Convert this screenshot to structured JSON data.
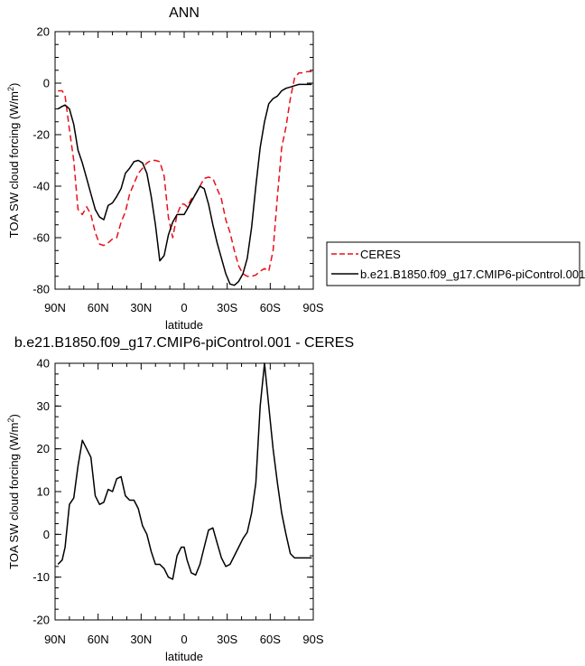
{
  "chart_data": [
    {
      "type": "line",
      "title": "ANN",
      "xlabel": "latitude",
      "ylabel": "TOA SW cloud forcing (W/m",
      "ylabel_sup": "2",
      "ylabel_close": ")",
      "xlim": [
        90,
        -90
      ],
      "ylim": [
        -80,
        20
      ],
      "x_ticks": [
        90,
        60,
        30,
        0,
        -30,
        -60,
        -90
      ],
      "x_tick_labels": [
        "90N",
        "60N",
        "30N",
        "0",
        "30S",
        "60S",
        "90S"
      ],
      "y_ticks": [
        -80,
        -60,
        -40,
        -20,
        0,
        20
      ],
      "y_tick_labels": [
        "-80",
        "-60",
        "-40",
        "-20",
        "0",
        "20"
      ],
      "grid": false,
      "legend_position": "right",
      "series": [
        {
          "name": "CERES",
          "color": "#e8101a",
          "dash": "dashed",
          "x": [
            88,
            85,
            83,
            80,
            77,
            74,
            71,
            68,
            65,
            62,
            59,
            56,
            53,
            50,
            47,
            44,
            41,
            38,
            35,
            32,
            29,
            26,
            23,
            20,
            17,
            14,
            11,
            8,
            5,
            2,
            0,
            -2,
            -5,
            -8,
            -11,
            -14,
            -17,
            -20,
            -23,
            -26,
            -29,
            -32,
            -35,
            -38,
            -41,
            -44,
            -47,
            -50,
            -53,
            -56,
            -59,
            -62,
            -65,
            -68,
            -71,
            -74,
            -77,
            -80,
            -83,
            -86,
            -89
          ],
          "y": [
            -3,
            -3,
            -5,
            -18,
            -30,
            -49,
            -51,
            -48,
            -51,
            -58,
            -62.5,
            -63,
            -62,
            -60.5,
            -60,
            -54,
            -50,
            -43,
            -39,
            -35,
            -33,
            -31,
            -30,
            -30,
            -30.5,
            -36,
            -52,
            -60,
            -51,
            -47,
            -47,
            -48,
            -45,
            -43,
            -40,
            -37,
            -36.5,
            -37,
            -41,
            -45,
            -53,
            -58,
            -65,
            -71,
            -74,
            -75,
            -75,
            -74.5,
            -73,
            -72,
            -73,
            -65,
            -44,
            -25,
            -17,
            -6,
            2,
            4,
            4,
            4.5,
            4.5
          ]
        },
        {
          "name": "b.e21.B1850.f09_g17.CMIP6-piControl.001",
          "color": "#000000",
          "dash": "solid",
          "x": [
            88,
            85,
            83,
            80,
            77,
            74,
            71,
            68,
            65,
            62,
            59,
            56,
            53,
            50,
            47,
            44,
            41,
            38,
            35,
            32,
            29,
            26,
            23,
            20,
            17,
            14,
            11,
            8,
            5,
            2,
            0,
            -2,
            -5,
            -8,
            -11,
            -14,
            -17,
            -20,
            -23,
            -26,
            -29,
            -32,
            -35,
            -38,
            -41,
            -44,
            -47,
            -50,
            -53,
            -56,
            -59,
            -62,
            -65,
            -68,
            -71,
            -74,
            -77,
            -80,
            -83,
            -86,
            -89
          ],
          "y": [
            -10,
            -9,
            -8.5,
            -10,
            -16,
            -26,
            -31,
            -37,
            -43,
            -49,
            -52,
            -53,
            -47.5,
            -46.5,
            -44,
            -41,
            -35,
            -33,
            -30.5,
            -30,
            -31,
            -35,
            -44,
            -55,
            -69,
            -67,
            -59,
            -54,
            -51,
            -51,
            -51,
            -49,
            -46,
            -43,
            -40,
            -41,
            -47,
            -55,
            -62,
            -68,
            -74,
            -78,
            -78.5,
            -77,
            -74,
            -68,
            -56,
            -40,
            -25,
            -15,
            -8,
            -6,
            -5,
            -3,
            -2,
            -1.5,
            -1,
            -0.5,
            -0.5,
            -0.5,
            -0.5
          ]
        }
      ]
    },
    {
      "type": "line",
      "title": "b.e21.B1850.f09_g17.CMIP6-piControl.001 - CERES",
      "xlabel": "latitude",
      "ylabel": "TOA SW cloud forcing (W/m",
      "ylabel_sup": "2",
      "ylabel_close": ")",
      "xlim": [
        90,
        -90
      ],
      "ylim": [
        -20,
        40
      ],
      "x_ticks": [
        90,
        60,
        30,
        0,
        -30,
        -60,
        -90
      ],
      "x_tick_labels": [
        "90N",
        "60N",
        "30N",
        "0",
        "30S",
        "60S",
        "90S"
      ],
      "y_ticks": [
        -20,
        -10,
        0,
        10,
        20,
        30,
        40
      ],
      "y_tick_labels": [
        "-20",
        "-10",
        "0",
        "10",
        "20",
        "30",
        "40"
      ],
      "grid": false,
      "series": [
        {
          "color": "#000000",
          "dash": "solid",
          "x": [
            88,
            85,
            83,
            80,
            77,
            74,
            71,
            68,
            65,
            62,
            59,
            56,
            53,
            50,
            47,
            44,
            41,
            38,
            35,
            32,
            29,
            26,
            23,
            20,
            17,
            14,
            11,
            8,
            5,
            2,
            0,
            -2,
            -5,
            -8,
            -11,
            -14,
            -17,
            -20,
            -23,
            -26,
            -29,
            -32,
            -35,
            -38,
            -41,
            -44,
            -47,
            -50,
            -53,
            -56,
            -59,
            -62,
            -65,
            -68,
            -71,
            -74,
            -77,
            -80,
            -83,
            -86,
            -89
          ],
          "y": [
            -7,
            -6,
            -3,
            7,
            8.5,
            16,
            22,
            20,
            18,
            9,
            7,
            7.5,
            10.5,
            10,
            13,
            13.5,
            9,
            8,
            8,
            6,
            2,
            0,
            -4,
            -7,
            -7,
            -8,
            -10,
            -10.5,
            -5,
            -3,
            -3,
            -6,
            -9,
            -9.5,
            -7,
            -3,
            1,
            1.5,
            -2,
            -5.5,
            -7.5,
            -7,
            -5,
            -3,
            -1,
            0.5,
            5,
            12,
            30,
            40,
            30,
            20,
            12,
            5,
            0,
            -4.5,
            -5.5,
            -5.5,
            -5.5,
            -5.5,
            -5.5
          ]
        }
      ]
    }
  ]
}
